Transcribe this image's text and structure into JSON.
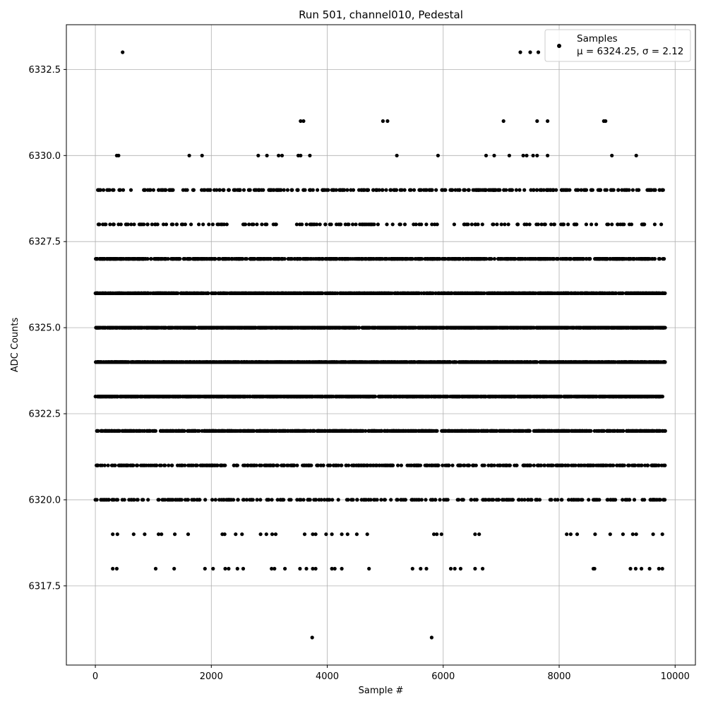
{
  "chart_data": {
    "type": "scatter",
    "title": "Run 501, channel010, Pedestal",
    "xlabel": "Sample #",
    "ylabel": "ADC Counts",
    "xlim": [
      -500,
      10350
    ],
    "ylim": [
      6315.2,
      6333.8
    ],
    "xticks": [
      0,
      2000,
      4000,
      6000,
      8000,
      10000
    ],
    "xtick_labels": [
      "0",
      "2000",
      "4000",
      "6000",
      "8000",
      "10000"
    ],
    "yticks": [
      6317.5,
      6320.0,
      6322.5,
      6325.0,
      6327.5,
      6330.0,
      6332.5
    ],
    "ytick_labels": [
      "6317.5",
      "6320.0",
      "6322.5",
      "6325.0",
      "6327.5",
      "6330.0",
      "6332.5"
    ],
    "grid": true,
    "marker_color": "#000000",
    "legend": {
      "placement": "top-right",
      "line1": "Samples",
      "line2": "μ = 6324.25, σ = 2.12"
    },
    "series": [
      {
        "name": "Samples",
        "n_samples": 9850,
        "points": [
          [
            470,
            6333
          ],
          [
            7330,
            6333
          ],
          [
            7500,
            6333
          ],
          [
            7640,
            6333
          ],
          [
            3540,
            6331
          ],
          [
            3590,
            6331
          ],
          [
            4960,
            6331
          ],
          [
            5040,
            6331
          ],
          [
            7040,
            6331
          ],
          [
            7620,
            6331
          ],
          [
            7800,
            6331
          ],
          [
            8770,
            6331
          ],
          [
            8800,
            6331
          ],
          [
            370,
            6330
          ],
          [
            400,
            6330
          ],
          [
            1620,
            6330
          ],
          [
            1840,
            6330
          ],
          [
            2810,
            6330
          ],
          [
            2960,
            6330
          ],
          [
            3160,
            6330
          ],
          [
            3220,
            6330
          ],
          [
            3500,
            6330
          ],
          [
            3540,
            6330
          ],
          [
            3700,
            6330
          ],
          [
            5200,
            6330
          ],
          [
            5910,
            6330
          ],
          [
            6740,
            6330
          ],
          [
            6880,
            6330
          ],
          [
            7140,
            6330
          ],
          [
            7380,
            6330
          ],
          [
            7440,
            6330
          ],
          [
            7550,
            6330
          ],
          [
            7620,
            6330
          ],
          [
            7800,
            6330
          ],
          [
            8910,
            6330
          ],
          [
            9330,
            6330
          ],
          [
            3740,
            6316
          ],
          [
            5800,
            6316
          ],
          [
            300,
            6318
          ],
          [
            370,
            6318
          ],
          [
            1040,
            6318
          ],
          [
            1360,
            6318
          ],
          [
            1890,
            6318
          ],
          [
            2030,
            6318
          ],
          [
            2240,
            6318
          ],
          [
            2300,
            6318
          ],
          [
            2450,
            6318
          ],
          [
            2550,
            6318
          ],
          [
            3040,
            6318
          ],
          [
            3090,
            6318
          ],
          [
            3270,
            6318
          ],
          [
            3530,
            6318
          ],
          [
            3640,
            6318
          ],
          [
            3750,
            6318
          ],
          [
            3800,
            6318
          ],
          [
            4080,
            6318
          ],
          [
            4130,
            6318
          ],
          [
            4250,
            6318
          ],
          [
            4720,
            6318
          ],
          [
            5470,
            6318
          ],
          [
            5610,
            6318
          ],
          [
            5710,
            6318
          ],
          [
            6130,
            6318
          ],
          [
            6200,
            6318
          ],
          [
            6300,
            6318
          ],
          [
            6550,
            6318
          ],
          [
            6680,
            6318
          ],
          [
            8590,
            6318
          ],
          [
            9230,
            6318
          ],
          [
            9320,
            6318
          ],
          [
            9420,
            6318
          ],
          [
            9560,
            6318
          ],
          [
            9720,
            6318
          ],
          [
            9780,
            6318
          ],
          [
            300,
            6319
          ],
          [
            380,
            6319
          ],
          [
            660,
            6319
          ],
          [
            850,
            6319
          ],
          [
            1090,
            6319
          ],
          [
            1140,
            6319
          ],
          [
            1370,
            6319
          ],
          [
            1600,
            6319
          ],
          [
            2190,
            6319
          ],
          [
            2230,
            6319
          ],
          [
            2420,
            6319
          ],
          [
            2530,
            6319
          ],
          [
            2850,
            6319
          ],
          [
            2950,
            6319
          ],
          [
            3110,
            6319
          ],
          [
            3050,
            6319
          ],
          [
            3610,
            6319
          ],
          [
            3750,
            6319
          ],
          [
            3800,
            6319
          ],
          [
            3980,
            6319
          ],
          [
            4080,
            6319
          ],
          [
            4250,
            6319
          ],
          [
            4350,
            6319
          ],
          [
            4510,
            6319
          ],
          [
            4690,
            6319
          ],
          [
            5840,
            6319
          ],
          [
            5890,
            6319
          ],
          [
            5970,
            6319
          ],
          [
            6550,
            6319
          ],
          [
            6620,
            6319
          ],
          [
            8130,
            6319
          ],
          [
            8200,
            6319
          ],
          [
            8310,
            6319
          ],
          [
            8620,
            6319
          ],
          [
            8880,
            6319
          ],
          [
            9100,
            6319
          ],
          [
            9270,
            6319
          ],
          [
            9330,
            6319
          ],
          [
            9620,
            6319
          ],
          [
            9780,
            6319
          ],
          [
            8610,
            6318
          ],
          [
            5500,
            6321
          ],
          [
            3600,
            6321
          ],
          [
            9000,
            6321
          ]
        ],
        "dense_levels": [
          {
            "y": 6329,
            "x_min": 0,
            "x_max": 9820,
            "count": 330
          },
          {
            "y": 6328,
            "x_min": 0,
            "x_max": 9830,
            "count": 170
          },
          {
            "y": 6327,
            "x_min": 0,
            "x_max": 9830,
            "count": 800
          },
          {
            "y": 6326,
            "x_min": 0,
            "x_max": 9830,
            "count": 1200
          },
          {
            "y": 6325,
            "x_min": 0,
            "x_max": 9830,
            "count": 1500
          },
          {
            "y": 6324,
            "x_min": 0,
            "x_max": 9830,
            "count": 1500
          },
          {
            "y": 6323,
            "x_min": 0,
            "x_max": 9830,
            "count": 1200
          },
          {
            "y": 6322,
            "x_min": 0,
            "x_max": 9830,
            "count": 900
          },
          {
            "y": 6321,
            "x_min": 0,
            "x_max": 9830,
            "count": 450
          },
          {
            "y": 6320,
            "x_min": 0,
            "x_max": 9830,
            "count": 280
          }
        ]
      }
    ]
  }
}
